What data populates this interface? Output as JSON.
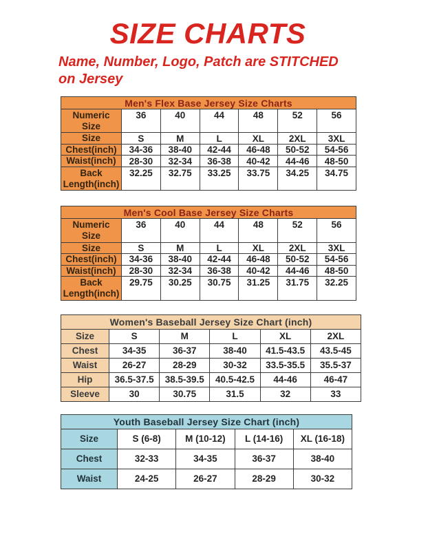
{
  "header": {
    "title": "SIZE CHARTS",
    "subtitle_line1": "Name, Number, Logo, Patch are STITCHED",
    "subtitle_line2": "on Jersey"
  },
  "colors": {
    "accent_red": "#d9251f",
    "orange": "#ef9449",
    "peach": "#f5d4ac",
    "light_blue": "#a8d7e2",
    "border": "#3b3b3b",
    "cell_text": "#242424"
  },
  "themes": {
    "orange": {
      "band_bg": "#ef9449",
      "band_text": "#8e2318",
      "label_bg": "#ef9449",
      "label_text": "#33240f"
    },
    "peach": {
      "band_bg": "#f5d4ac",
      "band_text": "#3a3a3a",
      "label_bg": "#f5d4ac",
      "label_text": "#3a3a3a"
    },
    "blue": {
      "band_bg": "#a8d7e2",
      "band_text": "#22333a",
      "label_bg": "#a8d7e2",
      "label_text": "#22333a"
    }
  },
  "tables": [
    {
      "id": "mens-flex-base",
      "title": "Men's Flex Base Jersey Size Charts",
      "theme": "orange",
      "rows": [
        {
          "label": "Numeric\nSize",
          "tall": true,
          "values": [
            "36",
            "40",
            "44",
            "48",
            "52",
            "56"
          ]
        },
        {
          "label": "Size",
          "values": [
            "S",
            "M",
            "L",
            "XL",
            "2XL",
            "3XL"
          ]
        },
        {
          "label": "Chest(inch)",
          "values": [
            "34-36",
            "38-40",
            "42-44",
            "46-48",
            "50-52",
            "54-56"
          ]
        },
        {
          "label": "Waist(inch)",
          "values": [
            "28-30",
            "32-34",
            "36-38",
            "40-42",
            "44-46",
            "48-50"
          ]
        },
        {
          "label": "Back\nLength(inch)",
          "tall": true,
          "values": [
            "32.25",
            "32.75",
            "33.25",
            "33.75",
            "34.25",
            "34.75"
          ]
        }
      ]
    },
    {
      "id": "mens-cool-base",
      "title": "Men's Cool Base Jersey Size Charts",
      "theme": "orange",
      "rows": [
        {
          "label": "Numeric\nSize",
          "tall": true,
          "values": [
            "36",
            "40",
            "44",
            "48",
            "52",
            "56"
          ]
        },
        {
          "label": "Size",
          "values": [
            "S",
            "M",
            "L",
            "XL",
            "2XL",
            "3XL"
          ]
        },
        {
          "label": "Chest(inch)",
          "values": [
            "34-36",
            "38-40",
            "42-44",
            "46-48",
            "50-52",
            "54-56"
          ]
        },
        {
          "label": "Waist(inch)",
          "values": [
            "28-30",
            "32-34",
            "36-38",
            "40-42",
            "44-46",
            "48-50"
          ]
        },
        {
          "label": "Back\nLength(inch)",
          "tall": true,
          "values": [
            "29.75",
            "30.25",
            "30.75",
            "31.25",
            "31.75",
            "32.25"
          ]
        }
      ]
    },
    {
      "id": "womens-baseball",
      "title": "Women's Baseball Jersey Size Chart (inch)",
      "theme": "peach",
      "rows": [
        {
          "label": "Size",
          "values": [
            "S",
            "M",
            "L",
            "XL",
            "2XL"
          ]
        },
        {
          "label": "Chest",
          "values": [
            "34-35",
            "36-37",
            "38-40",
            "41.5-43.5",
            "43.5-45"
          ]
        },
        {
          "label": "Waist",
          "values": [
            "26-27",
            "28-29",
            "30-32",
            "33.5-35.5",
            "35.5-37"
          ]
        },
        {
          "label": "Hip",
          "values": [
            "36.5-37.5",
            "38.5-39.5",
            "40.5-42.5",
            "44-46",
            "46-47"
          ]
        },
        {
          "label": "Sleeve",
          "values": [
            "30",
            "30.75",
            "31.5",
            "32",
            "33"
          ]
        }
      ]
    },
    {
      "id": "youth-baseball",
      "title": "Youth Baseball Jersey Size Chart (inch)",
      "theme": "blue",
      "rows": [
        {
          "label": "Size",
          "values": [
            "S (6-8)",
            "M (10-12)",
            "L (14-16)",
            "XL (16-18)"
          ]
        },
        {
          "label": "Chest",
          "values": [
            "32-33",
            "34-35",
            "36-37",
            "38-40"
          ]
        },
        {
          "label": "Waist",
          "values": [
            "24-25",
            "26-27",
            "28-29",
            "30-32"
          ]
        }
      ]
    }
  ]
}
